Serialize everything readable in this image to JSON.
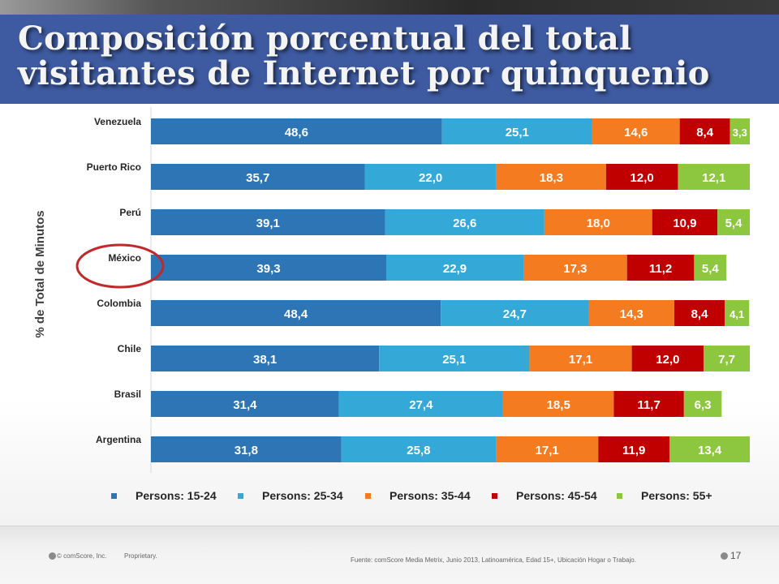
{
  "slide": {
    "title": "Composición porcentual del total visitantes de Internet por quinquenio",
    "footer": {
      "copyright": "© comScore, Inc.",
      "proprietary": "Proprietary.",
      "source": "Fuente: comScore Media Metrix, Junio 2013, Latinoamérica, Edad 15+, Ubicación Hogar o Trabajo.",
      "page_number": "17"
    },
    "highlighted_category": "México",
    "highlight_color": "#c0282a"
  },
  "chart_data": {
    "type": "bar",
    "orientation": "horizontal",
    "stacked": true,
    "title": "",
    "xlabel": "",
    "ylabel": "% de Total de Minutos",
    "xlim": [
      0,
      100
    ],
    "grid": false,
    "legend_position": "bottom",
    "categories": [
      "Venezuela",
      "Puerto Rico",
      "Perú",
      "México",
      "Colombia",
      "Chile",
      "Brasil",
      "Argentina"
    ],
    "series": [
      {
        "name": "Persons: 15-24",
        "color": "#2e75b6",
        "values": [
          48.6,
          35.7,
          39.1,
          39.3,
          48.4,
          38.1,
          31.4,
          31.8
        ],
        "labels": [
          "48,6",
          "35,7",
          "39,1",
          "39,3",
          "48,4",
          "38,1",
          "31,4",
          "31,8"
        ]
      },
      {
        "name": "Persons: 25-34",
        "color": "#34a9d8",
        "values": [
          25.1,
          22.0,
          26.6,
          22.9,
          24.7,
          25.1,
          27.4,
          25.8
        ],
        "labels": [
          "25,1",
          "22,0",
          "26,6",
          "22,9",
          "24,7",
          "25,1",
          "27,4",
          "25,8"
        ]
      },
      {
        "name": "Persons: 35-44",
        "color": "#f47b20",
        "values": [
          14.6,
          18.3,
          18.0,
          17.3,
          14.3,
          17.1,
          18.5,
          17.1
        ],
        "labels": [
          "14,6",
          "18,3",
          "18,0",
          "17,3",
          "14,3",
          "17,1",
          "18,5",
          "17,1"
        ]
      },
      {
        "name": "Persons: 45-54",
        "color": "#c00000",
        "values": [
          8.4,
          12.0,
          10.9,
          11.2,
          8.4,
          12.0,
          11.7,
          11.9
        ],
        "labels": [
          "8,4",
          "12,0",
          "10,9",
          "11,2",
          "8,4",
          "12,0",
          "11,7",
          "11,9"
        ]
      },
      {
        "name": "Persons: 55+",
        "color": "#8dc63f",
        "values": [
          3.3,
          12.1,
          5.4,
          5.4,
          4.1,
          7.7,
          6.3,
          13.4
        ],
        "labels": [
          "3,3",
          "12,1",
          "5,4",
          "5,4",
          "4,1",
          "7,7",
          "6,3",
          "13,4"
        ]
      }
    ]
  }
}
